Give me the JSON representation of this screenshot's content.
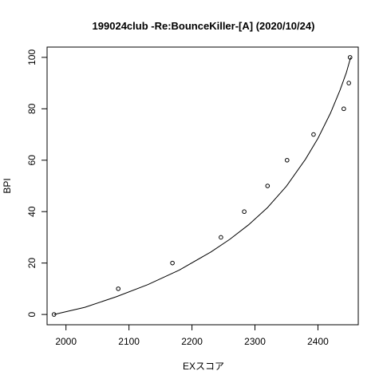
{
  "chart_data": {
    "type": "scatter",
    "title": "199024club -Re:BounceKiller-[A] (2020/10/24)",
    "xlabel": "EXスコア",
    "ylabel": "BPI",
    "xlim": [
      1970,
      2464
    ],
    "ylim": [
      -4,
      104
    ],
    "xticks": [
      2000,
      2100,
      2200,
      2300,
      2400
    ],
    "yticks": [
      0,
      20,
      40,
      60,
      80,
      100
    ],
    "grid": false,
    "legend": "none",
    "points": [
      {
        "x": 1981,
        "y": 0
      },
      {
        "x": 2083,
        "y": 10
      },
      {
        "x": 2169,
        "y": 20
      },
      {
        "x": 2246,
        "y": 30
      },
      {
        "x": 2283,
        "y": 40
      },
      {
        "x": 2320,
        "y": 50
      },
      {
        "x": 2351,
        "y": 60
      },
      {
        "x": 2393,
        "y": 70
      },
      {
        "x": 2441,
        "y": 80
      },
      {
        "x": 2449,
        "y": 90
      },
      {
        "x": 2451,
        "y": 100
      }
    ],
    "curve": [
      {
        "x": 1981,
        "y": 0
      },
      {
        "x": 2030,
        "y": 2.8
      },
      {
        "x": 2080,
        "y": 6.9
      },
      {
        "x": 2130,
        "y": 11.6
      },
      {
        "x": 2180,
        "y": 17.3
      },
      {
        "x": 2230,
        "y": 24.3
      },
      {
        "x": 2260,
        "y": 29.2
      },
      {
        "x": 2290,
        "y": 34.9
      },
      {
        "x": 2320,
        "y": 41.6
      },
      {
        "x": 2350,
        "y": 49.9
      },
      {
        "x": 2380,
        "y": 60.3
      },
      {
        "x": 2400,
        "y": 68.5
      },
      {
        "x": 2420,
        "y": 78.4
      },
      {
        "x": 2435,
        "y": 87.2
      },
      {
        "x": 2445,
        "y": 94.0
      },
      {
        "x": 2452,
        "y": 100
      }
    ]
  }
}
